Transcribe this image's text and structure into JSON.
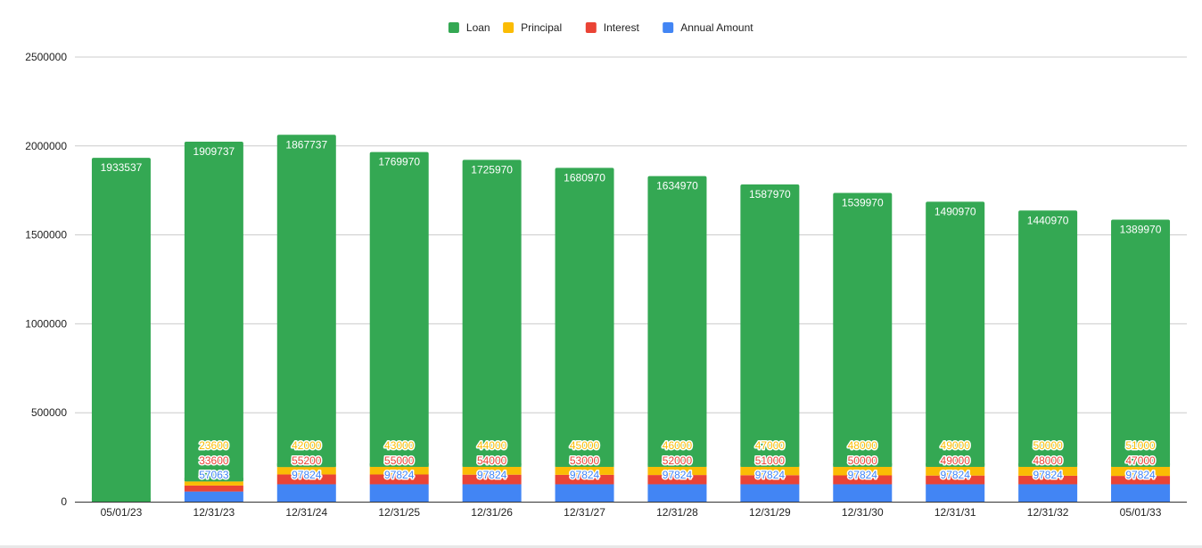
{
  "chart_data": {
    "type": "bar",
    "stacked": true,
    "categories": [
      "05/01/23",
      "12/31/23",
      "12/31/24",
      "12/31/25",
      "12/31/26",
      "12/31/27",
      "12/31/28",
      "12/31/29",
      "12/31/30",
      "12/31/31",
      "12/31/32",
      "05/01/33"
    ],
    "series": [
      {
        "name": "Annual Amount",
        "color": "#4285f4",
        "values": [
          0,
          57063,
          97824,
          97824,
          97824,
          97824,
          97824,
          97824,
          97824,
          97824,
          97824,
          97824
        ]
      },
      {
        "name": "Interest",
        "color": "#ea4335",
        "values": [
          0,
          33600,
          55200,
          55000,
          54000,
          53000,
          52000,
          51000,
          50000,
          49000,
          48000,
          47000
        ]
      },
      {
        "name": "Principal",
        "color": "#fbbc04",
        "values": [
          0,
          23600,
          42000,
          43000,
          44000,
          45000,
          46000,
          47000,
          48000,
          49000,
          50000,
          51000
        ]
      },
      {
        "name": "Loan",
        "color": "#34a853",
        "values": [
          1933537,
          1909737,
          1867737,
          1769970,
          1725970,
          1680970,
          1634970,
          1587970,
          1539970,
          1490970,
          1440970,
          1389970
        ]
      }
    ],
    "legend_order": [
      "Loan",
      "Principal",
      "Interest",
      "Annual Amount"
    ],
    "legend_position": "top",
    "title": "",
    "xlabel": "",
    "ylabel": "",
    "ylim": [
      0,
      2500000
    ],
    "yticks": [
      0,
      500000,
      1000000,
      1500000,
      2000000,
      2500000
    ],
    "grid": true
  }
}
